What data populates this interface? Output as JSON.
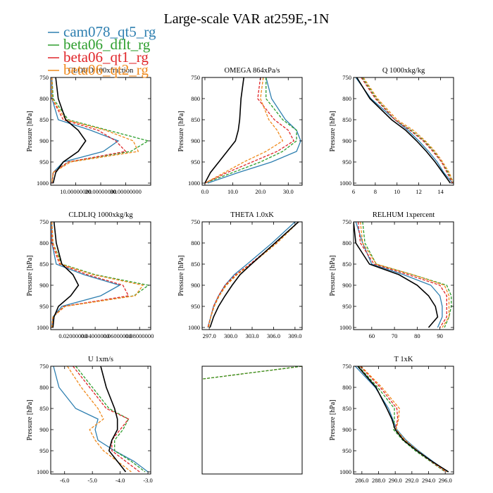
{
  "title": "Large-scale VAR at259E,-1N",
  "ylabel": "Pressure [hPa]",
  "legend": [
    {
      "label": "cam078_qt5_rg",
      "color": "#2e7fb0",
      "dash": "solid"
    },
    {
      "label": "beta06_dflt_rg",
      "color": "#2e9e2e",
      "dash": "solid"
    },
    {
      "label": "beta06_qt1_rg",
      "color": "#e0262a",
      "dash": "solid"
    },
    {
      "label": "beta06_qt2_rg",
      "color": "#f08a1c",
      "dash": "solid"
    }
  ],
  "series_styles": {
    "cam078_qt5_rg": {
      "color": "#2e7fb0",
      "dash": "solid"
    },
    "beta06_dflt_rg": {
      "color": "#2e9e2e",
      "dash": "dashed"
    },
    "beta06_qt1_rg": {
      "color": "#e0262a",
      "dash": "dashed"
    },
    "beta06_qt2_rg": {
      "color": "#f08a1c",
      "dash": "dashed"
    },
    "obs": {
      "color": "#000000",
      "dash": "solid"
    }
  },
  "chart_data": [
    {
      "type": "line",
      "title": "CLOUD 100xfraction",
      "xlim": [
        0,
        40
      ],
      "ylim": [
        1005,
        750
      ],
      "xticks": [
        10,
        20,
        30
      ],
      "xtick_labels": [
        "10.00000000",
        "20.00000000",
        "30.00000000"
      ],
      "yticks": [
        750,
        800,
        850,
        900,
        950,
        1000
      ],
      "y": [
        750,
        800,
        850,
        875,
        900,
        925,
        950,
        975,
        1000
      ],
      "series": [
        {
          "name": "cam078_qt5_rg",
          "x": [
            0.5,
            0.5,
            3,
            16,
            27,
            21,
            5,
            1,
            0.5
          ]
        },
        {
          "name": "beta06_dflt_rg",
          "x": [
            0.5,
            1,
            7,
            23,
            39,
            32,
            7,
            1,
            0.5
          ]
        },
        {
          "name": "beta06_qt1_rg",
          "x": [
            0.5,
            0.5,
            5,
            19,
            26,
            30,
            7,
            1,
            0.5
          ]
        },
        {
          "name": "beta06_qt2_rg",
          "x": [
            0.5,
            0.5,
            6,
            22,
            33,
            35,
            8,
            1,
            0.5
          ]
        },
        {
          "name": "obs",
          "x": [
            2,
            3,
            6,
            11,
            14,
            11,
            5,
            2,
            1
          ]
        }
      ]
    },
    {
      "type": "line",
      "title": "OMEGA 864xPa/s",
      "xlim": [
        -1,
        35
      ],
      "ylim": [
        1005,
        750
      ],
      "xticks": [
        0,
        10,
        20,
        30
      ],
      "xtick_labels": [
        "0.0",
        "10.0",
        "20.0",
        "30.0"
      ],
      "yticks": [
        750,
        800,
        850,
        900,
        950,
        1000
      ],
      "y": [
        750,
        800,
        850,
        875,
        900,
        925,
        950,
        975,
        1000
      ],
      "series": [
        {
          "name": "cam078_qt5_rg",
          "x": [
            22,
            24,
            29,
            33,
            34.5,
            33,
            24,
            12,
            1
          ]
        },
        {
          "name": "beta06_dflt_rg",
          "x": [
            22,
            22,
            28,
            33,
            33,
            28,
            20,
            10,
            0
          ]
        },
        {
          "name": "beta06_qt1_rg",
          "x": [
            20,
            19,
            25,
            30,
            32,
            26,
            17,
            8,
            0
          ]
        },
        {
          "name": "beta06_qt2_rg",
          "x": [
            21,
            20,
            23,
            26,
            28,
            22,
            14,
            7,
            0
          ]
        },
        {
          "name": "obs",
          "x": [
            14,
            13,
            12.5,
            12,
            11,
            8,
            5,
            2,
            0
          ]
        }
      ]
    },
    {
      "type": "line",
      "title": "Q 1000xkg/kg",
      "xlim": [
        6,
        15.2
      ],
      "ylim": [
        1005,
        750
      ],
      "xticks": [
        6,
        8,
        10,
        12,
        14
      ],
      "xtick_labels": [
        "6",
        "8",
        "10",
        "12",
        "14"
      ],
      "yticks": [
        750,
        800,
        850,
        900,
        950,
        1000
      ],
      "y": [
        750,
        800,
        850,
        875,
        900,
        925,
        950,
        975,
        1000
      ],
      "series": [
        {
          "name": "cam078_qt5_rg",
          "x": [
            6.2,
            7.6,
            9.8,
            11,
            12,
            12.9,
            13.7,
            14.3,
            15.1
          ]
        },
        {
          "name": "beta06_dflt_rg",
          "x": [
            6.8,
            8.1,
            9.8,
            11.3,
            12.5,
            13.4,
            14.1,
            14.7,
            15.2
          ]
        },
        {
          "name": "beta06_qt1_rg",
          "x": [
            6.7,
            8,
            9.8,
            11.2,
            12.4,
            13.3,
            14.1,
            14.6,
            15.1
          ]
        },
        {
          "name": "beta06_qt2_rg",
          "x": [
            6.9,
            8.2,
            10,
            11.5,
            12.6,
            13.5,
            14.2,
            14.8,
            15.2
          ]
        },
        {
          "name": "obs",
          "x": [
            6.3,
            7.5,
            9.5,
            10.8,
            11.8,
            12.7,
            13.5,
            14.2,
            14.9
          ]
        }
      ]
    },
    {
      "type": "line",
      "title": "CLDLIQ 1000xkg/kg",
      "xlim": [
        0,
        0.09
      ],
      "ylim": [
        1005,
        750
      ],
      "xticks": [
        0.02,
        0.04,
        0.06,
        0.08
      ],
      "xtick_labels": [
        "0.02000000",
        "0.04000000",
        "0.06000000",
        "0.08000000"
      ],
      "yticks": [
        750,
        800,
        850,
        900,
        950,
        1000
      ],
      "y": [
        750,
        800,
        850,
        875,
        900,
        925,
        950,
        975,
        1000
      ],
      "series": [
        {
          "name": "cam078_qt5_rg",
          "x": [
            0.001,
            0.001,
            0.005,
            0.03,
            0.062,
            0.045,
            0.01,
            0.002,
            0.001
          ]
        },
        {
          "name": "beta06_dflt_rg",
          "x": [
            0.001,
            0.002,
            0.01,
            0.04,
            0.088,
            0.075,
            0.012,
            0.002,
            0.001
          ]
        },
        {
          "name": "beta06_qt1_rg",
          "x": [
            0.001,
            0.001,
            0.008,
            0.033,
            0.065,
            0.07,
            0.012,
            0.002,
            0.001
          ]
        },
        {
          "name": "beta06_qt2_rg",
          "x": [
            0.001,
            0.002,
            0.009,
            0.038,
            0.083,
            0.076,
            0.013,
            0.002,
            0.001
          ]
        },
        {
          "name": "obs",
          "x": [
            0.003,
            0.005,
            0.01,
            0.02,
            0.025,
            0.018,
            0.007,
            0.003,
            0.002
          ]
        }
      ]
    },
    {
      "type": "line",
      "title": "THETA 1.0xK",
      "xlim": [
        296,
        310
      ],
      "ylim": [
        1005,
        750
      ],
      "xticks": [
        297,
        300,
        303,
        306,
        309
      ],
      "xtick_labels": [
        "297.0",
        "300.0",
        "303.0",
        "306.0",
        "309.0"
      ],
      "yticks": [
        750,
        800,
        850,
        900,
        950,
        1000
      ],
      "y": [
        750,
        800,
        850,
        875,
        900,
        925,
        950,
        975,
        1000
      ],
      "series": [
        {
          "name": "cam078_qt5_rg",
          "x": [
            309,
            305.8,
            302.3,
            300.5,
            299.2,
            298.3,
            297.6,
            297.2,
            296.8
          ]
        },
        {
          "name": "beta06_dflt_rg",
          "x": [
            309.5,
            306.4,
            302.8,
            300.8,
            299.3,
            298.4,
            297.7,
            297.2,
            296.9
          ]
        },
        {
          "name": "beta06_qt1_rg",
          "x": [
            309.5,
            306.3,
            302.7,
            300.7,
            299.2,
            298.3,
            297.6,
            297.2,
            296.8
          ]
        },
        {
          "name": "beta06_qt2_rg",
          "x": [
            309.5,
            306.5,
            302.9,
            300.9,
            299.4,
            298.4,
            297.7,
            297.2,
            296.9
          ]
        },
        {
          "name": "obs",
          "x": [
            309.5,
            306.2,
            302.9,
            301.3,
            300.2,
            299.2,
            298.3,
            297.6,
            297.1
          ]
        }
      ]
    },
    {
      "type": "line",
      "title": "RELHUM 1xpercent",
      "xlim": [
        52,
        96
      ],
      "ylim": [
        1005,
        750
      ],
      "xticks": [
        60,
        70,
        80,
        90
      ],
      "xtick_labels": [
        "60",
        "70",
        "80",
        "90"
      ],
      "yticks": [
        750,
        800,
        850,
        900,
        950,
        1000
      ],
      "y": [
        750,
        800,
        850,
        875,
        900,
        925,
        950,
        975,
        1000
      ],
      "series": [
        {
          "name": "cam078_qt5_rg",
          "x": [
            53,
            56,
            60,
            74,
            86,
            90,
            91,
            91,
            89
          ]
        },
        {
          "name": "beta06_dflt_rg",
          "x": [
            56,
            57,
            62,
            78,
            93,
            95,
            95,
            94,
            92
          ]
        },
        {
          "name": "beta06_qt1_rg",
          "x": [
            54,
            55,
            61,
            76,
            90,
            93,
            93,
            93,
            90
          ]
        },
        {
          "name": "beta06_qt2_rg",
          "x": [
            55,
            56,
            62,
            78,
            92,
            94,
            94,
            94,
            91
          ]
        },
        {
          "name": "obs",
          "x": [
            52,
            53,
            59,
            72,
            80,
            85,
            88,
            89,
            85
          ]
        }
      ]
    },
    {
      "type": "line",
      "title": "U 1xm/s",
      "xlim": [
        -6.5,
        -2.9
      ],
      "ylim": [
        1005,
        750
      ],
      "xticks": [
        -6,
        -5,
        -4,
        -3
      ],
      "xtick_labels": [
        "-6.0",
        "-5.0",
        "-4.0",
        "-3.0"
      ],
      "yticks": [
        750,
        800,
        850,
        900,
        950,
        1000
      ],
      "y": [
        750,
        800,
        850,
        875,
        900,
        925,
        950,
        975,
        1000
      ],
      "series": [
        {
          "name": "cam078_qt5_rg",
          "x": [
            -6.4,
            -6.2,
            -5.6,
            -4.8,
            -4.9,
            -4.8,
            -4.2,
            -3.5,
            -3.0
          ]
        },
        {
          "name": "beta06_dflt_rg",
          "x": [
            -5.6,
            -5.0,
            -4.4,
            -3.7,
            -3.9,
            -4.2,
            -4.2,
            -3.6,
            -3.1
          ]
        },
        {
          "name": "beta06_qt1_rg",
          "x": [
            -5.7,
            -5.1,
            -4.5,
            -3.7,
            -4.0,
            -4.3,
            -4.3,
            -3.8,
            -3.3
          ]
        },
        {
          "name": "beta06_qt2_rg",
          "x": [
            -5.9,
            -5.4,
            -4.8,
            -4.6,
            -5.1,
            -4.9,
            -4.6,
            -4.1,
            -3.6
          ]
        },
        {
          "name": "obs",
          "x": [
            -4.7,
            -4.5,
            -4.2,
            -4.1,
            -4.1,
            -4.3,
            -4.4,
            -4.1,
            -3.8
          ]
        }
      ]
    },
    {
      "type": "line",
      "title": "",
      "xlim": [
        0,
        1
      ],
      "ylim": [
        1005,
        750
      ],
      "xticks": [],
      "xtick_labels": [],
      "yticks": [],
      "y": [
        750,
        780
      ],
      "series": [
        {
          "name": "beta06_qt1_rg",
          "x": [
            1.0,
            0.01
          ]
        },
        {
          "name": "beta06_qt2_rg",
          "x": [
            1.0,
            0.01
          ]
        },
        {
          "name": "beta06_dflt_rg",
          "x": [
            1.0,
            0.01
          ]
        }
      ]
    },
    {
      "type": "line",
      "title": "T 1xK",
      "xlim": [
        285,
        297
      ],
      "ylim": [
        1005,
        750
      ],
      "xticks": [
        286,
        288,
        290,
        292,
        294,
        296
      ],
      "xtick_labels": [
        "286.0",
        "288.0",
        "290.0",
        "292.0",
        "294.0",
        "296.0"
      ],
      "yticks": [
        750,
        800,
        850,
        900,
        950,
        1000
      ],
      "y": [
        750,
        800,
        850,
        875,
        900,
        925,
        950,
        975,
        1000
      ],
      "series": [
        {
          "name": "cam078_qt5_rg",
          "x": [
            285.2,
            287.6,
            289.2,
            289.7,
            290.2,
            291.3,
            292.8,
            294.5,
            296.3
          ]
        },
        {
          "name": "beta06_dflt_rg",
          "x": [
            285.6,
            287.9,
            289.9,
            289.9,
            289.8,
            290.9,
            292.4,
            294.2,
            296.0
          ]
        },
        {
          "name": "beta06_qt1_rg",
          "x": [
            285.8,
            288.2,
            290.2,
            290.3,
            290.0,
            291.1,
            292.6,
            294.3,
            296.1
          ]
        },
        {
          "name": "beta06_qt2_rg",
          "x": [
            285.9,
            288.4,
            290.5,
            290.4,
            290.1,
            291.2,
            292.7,
            294.4,
            296.2
          ]
        },
        {
          "name": "obs",
          "x": [
            285.5,
            287.7,
            289.0,
            289.6,
            290.0,
            291.0,
            292.6,
            294.4,
            296.4
          ]
        }
      ]
    }
  ]
}
